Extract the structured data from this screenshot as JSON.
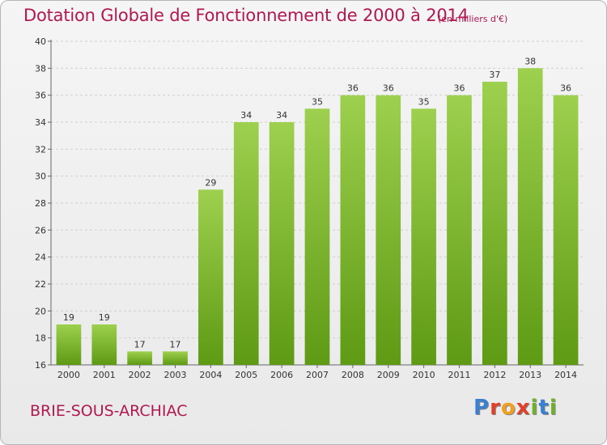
{
  "header": {
    "title": "Dotation Globale de Fonctionnement de 2000 à 2014",
    "unit": "(en milliers d'€)"
  },
  "footer": {
    "commune": "BRIE-SOUS-ARCHIAC",
    "logo": [
      "P",
      "r",
      "o",
      "x",
      "i",
      "t",
      "i"
    ]
  },
  "colors": {
    "title": "#b01850",
    "bar_top": "#9dd04e",
    "bar_bottom": "#5e9a14",
    "grid": "#cfcfcf",
    "logo": [
      "#3a7fd0",
      "#e0402a",
      "#f0a020",
      "#e0402a",
      "#6fb02a",
      "#3a7fd0",
      "#6fb02a"
    ]
  },
  "chart_data": {
    "type": "bar",
    "categories": [
      "2000",
      "2001",
      "2002",
      "2003",
      "2004",
      "2005",
      "2006",
      "2007",
      "2008",
      "2009",
      "2010",
      "2011",
      "2012",
      "2013",
      "2014"
    ],
    "values": [
      19,
      19,
      17,
      17,
      29,
      34,
      34,
      35,
      36,
      36,
      35,
      36,
      37,
      38,
      36
    ],
    "title": "Dotation Globale de Fonctionnement de 2000 à 2014",
    "subtitle": "(en milliers d'€)",
    "ylim": [
      16,
      40
    ],
    "yticks": [
      16,
      18,
      20,
      22,
      24,
      26,
      28,
      30,
      32,
      34,
      36,
      38,
      40
    ],
    "grid": true,
    "legend": "none"
  }
}
